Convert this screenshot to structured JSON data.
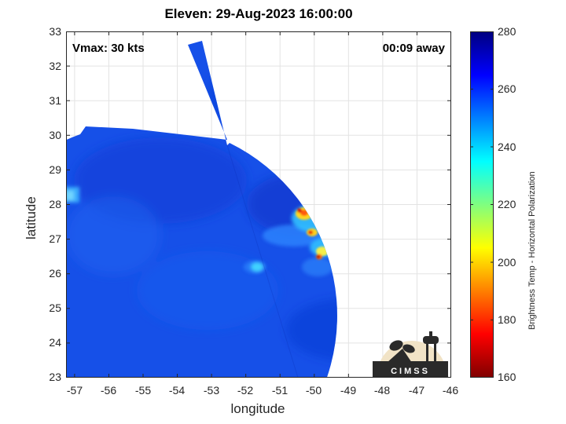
{
  "title": "Eleven: 29-Aug-2023 16:00:00",
  "vmax_label": "Vmax: 30 kts",
  "away_label": "00:09 away",
  "logo_text": "CIMSS",
  "map": {
    "xlabel": "longitude",
    "ylabel": "latitude",
    "xlim": [
      -57.25,
      -46
    ],
    "ylim": [
      23,
      33
    ],
    "x_ticks": [
      "-57",
      "-56",
      "-55",
      "-54",
      "-53",
      "-52",
      "-51",
      "-50",
      "-49",
      "-48",
      "-47",
      "-46"
    ],
    "y_ticks": [
      "33",
      "32",
      "31",
      "30",
      "29",
      "28",
      "27",
      "26",
      "25",
      "24",
      "23"
    ],
    "grid": true,
    "center_lon": -51.6,
    "center_lat": 27.9
  },
  "colorbar": {
    "label": "Brightness Temp - Horizontal Polarization",
    "ticks": [
      "280",
      "260",
      "240",
      "220",
      "200",
      "180",
      "160"
    ],
    "range": [
      160,
      280
    ],
    "colormap": "jet"
  }
}
